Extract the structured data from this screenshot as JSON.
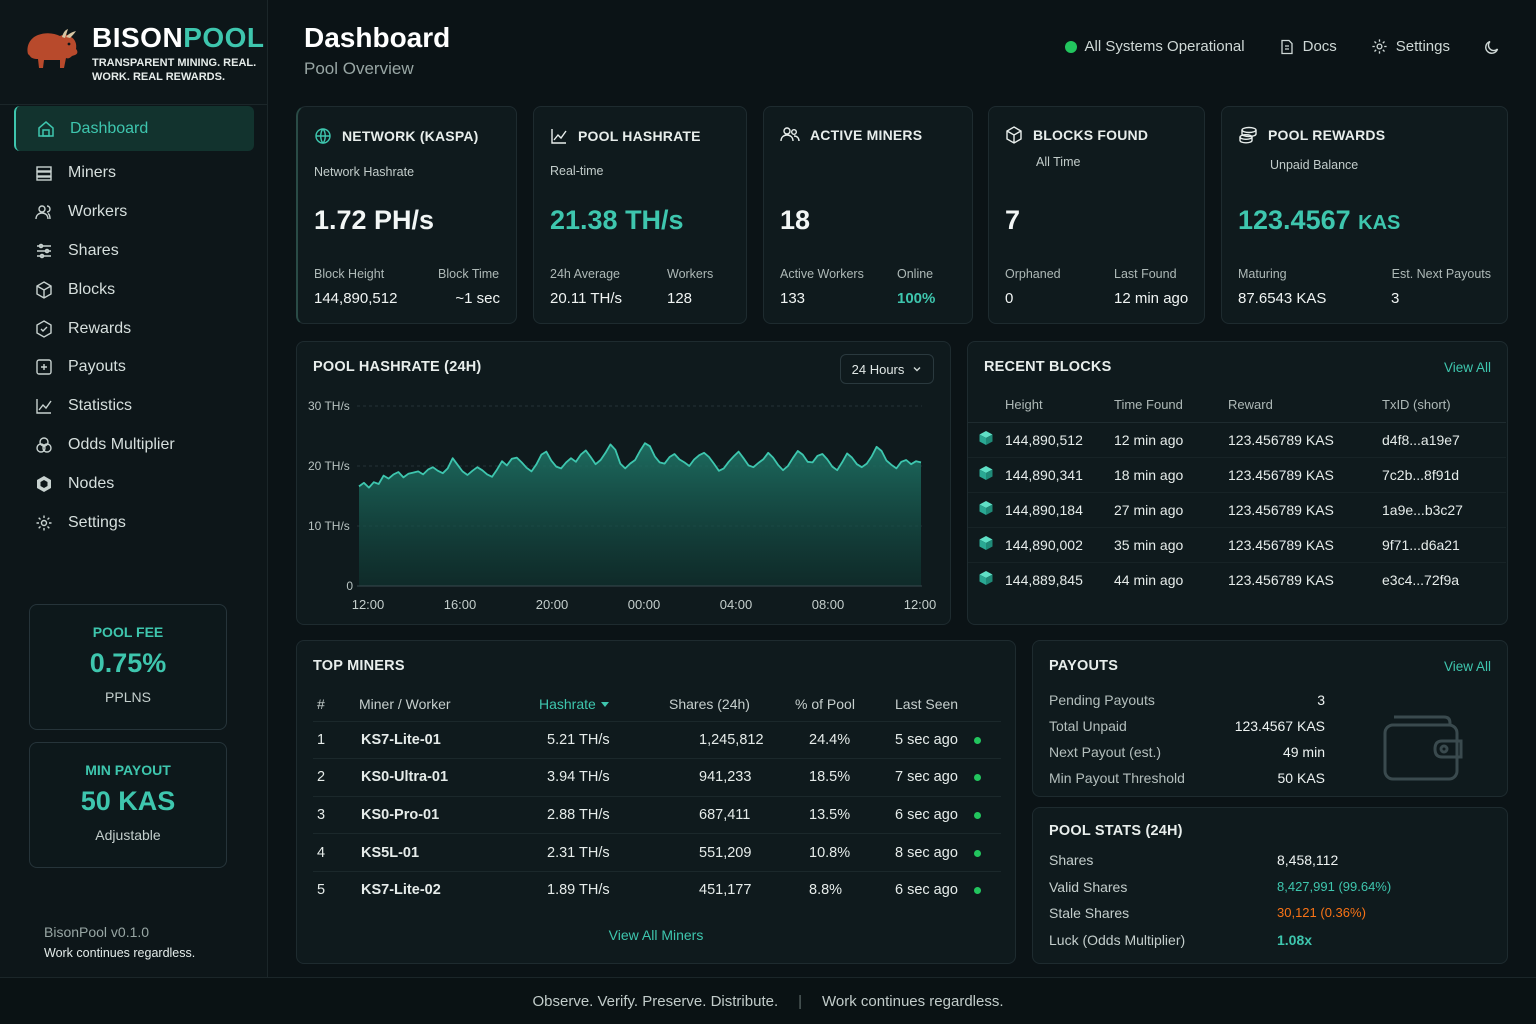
{
  "brand": {
    "name_a": "BISON",
    "name_b": "POOL",
    "tagline": "TRANSPARENT MINING. REAL. WORK. REAL REWARDS."
  },
  "header": {
    "title": "Dashboard",
    "subtitle": "Pool Overview",
    "status": "All Systems Operational",
    "docs": "Docs",
    "settings": "Settings"
  },
  "nav": [
    {
      "label": "Dashboard",
      "icon": "dashboard-icon",
      "active": true
    },
    {
      "label": "Miners",
      "icon": "miners-icon"
    },
    {
      "label": "Workers",
      "icon": "workers-icon"
    },
    {
      "label": "Shares",
      "icon": "shares-icon"
    },
    {
      "label": "Blocks",
      "icon": "blocks-icon"
    },
    {
      "label": "Rewards",
      "icon": "rewards-icon"
    },
    {
      "label": "Payouts",
      "icon": "payouts-icon"
    },
    {
      "label": "Statistics",
      "icon": "statistics-icon"
    },
    {
      "label": "Odds Multiplier",
      "icon": "odds-icon"
    },
    {
      "label": "Nodes",
      "icon": "nodes-icon"
    },
    {
      "label": "Settings",
      "icon": "settings-icon"
    }
  ],
  "pool_fee": {
    "title": "POOL FEE",
    "value": "0.75%",
    "sub": "PPLNS"
  },
  "min_payout": {
    "title": "MIN PAYOUT",
    "value": "50 KAS",
    "sub": "Adjustable"
  },
  "version": {
    "text": "BisonPool v0.1.0",
    "motto": "Work continues regardless."
  },
  "stats": {
    "network": {
      "title": "NETWORK (KASPA)",
      "sub": "Network Hashrate",
      "value": "1.72 PH/s",
      "l1": "Block Height",
      "v1": "144,890,512",
      "l2": "Block Time",
      "v2": "~1 sec"
    },
    "hashrate": {
      "title": "POOL HASHRATE",
      "sub": "Real-time",
      "value": "21.38 TH/s",
      "l1": "24h Average",
      "v1": "20.11 TH/s",
      "l2": "Workers",
      "v2": "128"
    },
    "miners": {
      "title": "ACTIVE MINERS",
      "value": "18",
      "l1": "Active Workers",
      "v1": "133",
      "l2": "Online",
      "v2": "100%"
    },
    "blocks": {
      "title": "BLOCKS FOUND",
      "sub": "All Time",
      "value": "7",
      "l1": "Orphaned",
      "v1": "0",
      "l2": "Last Found",
      "v2": "12 min ago"
    },
    "rewards": {
      "title": "POOL REWARDS",
      "sub": "Unpaid Balance",
      "value": "123.4567",
      "unit": "KAS",
      "l1": "Maturing",
      "v1": "87.6543 KAS",
      "l2": "Est. Next Payouts",
      "v2": "3"
    }
  },
  "chart_section": {
    "title": "POOL HASHRATE (24H)",
    "range": "24 Hours"
  },
  "chart_data": {
    "type": "area",
    "title": "POOL HASHRATE (24H)",
    "x_ticks": [
      "12:00",
      "16:00",
      "20:00",
      "00:00",
      "04:00",
      "08:00",
      "12:00"
    ],
    "y_ticks": [
      "0",
      "10 TH/s",
      "20 TH/s",
      "30 TH/s"
    ],
    "ylim": [
      0,
      30
    ],
    "series": [
      {
        "values": [
          16.6,
          17.2,
          16.4,
          17.3,
          17.0,
          18.4,
          17.9,
          18.6,
          19.0,
          18.1,
          18.7,
          18.9,
          19.1,
          18.6,
          19.4,
          19.8,
          19.2,
          18.8,
          19.6,
          21.3,
          20.2,
          19.1,
          18.5,
          19.2,
          19.8,
          19.3,
          18.6,
          18.2,
          19.4,
          20.8,
          20.1,
          21.2,
          21.4,
          20.6,
          19.7,
          19.1,
          20.3,
          21.9,
          22.4,
          20.9,
          19.9,
          19.6,
          20.6,
          21.3,
          20.7,
          21.9,
          22.6,
          21.5,
          20.3,
          21.0,
          22.2,
          23.6,
          22.7,
          20.4,
          19.6,
          20.4,
          21.0,
          22.5,
          23.8,
          23.3,
          21.6,
          20.6,
          20.4,
          21.5,
          22.0,
          21.1,
          20.6,
          20.0,
          21.1,
          21.8,
          22.2,
          21.5,
          20.4,
          19.2,
          19.6,
          20.7,
          21.6,
          22.4,
          21.3,
          20.1,
          19.8,
          20.5,
          21.1,
          22.2,
          21.4,
          20.2,
          19.3,
          20.0,
          21.3,
          22.5,
          21.9,
          20.7,
          20.6,
          21.7,
          22.0,
          21.1,
          19.9,
          19.3,
          20.6,
          22.1,
          21.4,
          20.3,
          19.8,
          20.4,
          21.6,
          23.2,
          22.5,
          20.9,
          20.2,
          19.6,
          20.7,
          21.0,
          20.3,
          20.8,
          20.6
        ]
      }
    ]
  },
  "recent_blocks": {
    "title": "RECENT BLOCKS",
    "view_all": "View All",
    "columns": [
      "Height",
      "Time Found",
      "Reward",
      "TxID (short)"
    ],
    "rows": [
      [
        "144,890,512",
        "12 min ago",
        "123.456789 KAS",
        "d4f8...a19e7"
      ],
      [
        "144,890,341",
        "18 min ago",
        "123.456789 KAS",
        "7c2b...8f91d"
      ],
      [
        "144,890,184",
        "27 min ago",
        "123.456789 KAS",
        "1a9e...b3c27"
      ],
      [
        "144,890,002",
        "35 min ago",
        "123.456789 KAS",
        "9f71...d6a21"
      ],
      [
        "144,889,845",
        "44 min ago",
        "123.456789 KAS",
        "e3c4...72f9a"
      ]
    ]
  },
  "top_miners": {
    "title": "TOP MINERS",
    "view_all": "View All Miners",
    "columns": [
      "#",
      "Miner / Worker",
      "Hashrate",
      "Shares (24h)",
      "% of Pool",
      "Last Seen"
    ],
    "rows": [
      [
        "1",
        "KS7-Lite-01",
        "5.21 TH/s",
        "1,245,812",
        "24.4%",
        "5 sec ago"
      ],
      [
        "2",
        "KS0-Ultra-01",
        "3.94 TH/s",
        "941,233",
        "18.5%",
        "7 sec ago"
      ],
      [
        "3",
        "KS0-Pro-01",
        "2.88 TH/s",
        "687,411",
        "13.5%",
        "6 sec ago"
      ],
      [
        "4",
        "KS5L-01",
        "2.31 TH/s",
        "551,209",
        "10.8%",
        "8 sec ago"
      ],
      [
        "5",
        "KS7-Lite-02",
        "1.89 TH/s",
        "451,177",
        "8.8%",
        "6 sec ago"
      ]
    ]
  },
  "payouts": {
    "title": "PAYOUTS",
    "view_all": "View All",
    "items": [
      [
        "Pending Payouts",
        "3"
      ],
      [
        "Total Unpaid",
        "123.4567 KAS"
      ],
      [
        "Next Payout (est.)",
        "49 min"
      ],
      [
        "Min Payout Threshold",
        "50 KAS"
      ]
    ]
  },
  "pool_stats": {
    "title": "POOL STATS (24H)",
    "items": [
      [
        "Shares",
        "8,458,112"
      ],
      [
        "Valid Shares",
        "8,427,991 (99.64%)"
      ],
      [
        "Stale Shares",
        "30,121 (0.36%)"
      ],
      [
        "Luck (Odds Multiplier)",
        "1.08x"
      ]
    ]
  },
  "footer": {
    "left": "Observe. Verify. Preserve. Distribute.",
    "sep": "|",
    "right": "Work continues regardless."
  },
  "colors": {
    "accent": "#3ec6ae",
    "background": "#0b1316",
    "card": "#0f1a1d",
    "online": "#22c55e",
    "stale": "#f97316",
    "brand_bison": "#b84a2c"
  }
}
